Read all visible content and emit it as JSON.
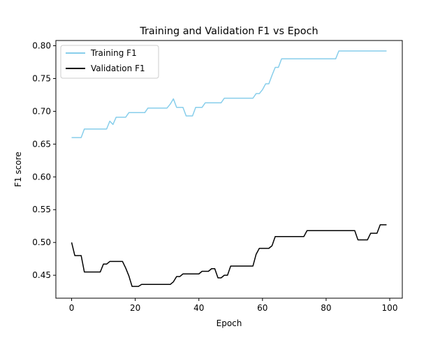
{
  "chart_data": {
    "type": "line",
    "title": "Training and Validation F1 vs Epoch",
    "xlabel": "Epoch",
    "ylabel": "F1 score",
    "xlim": [
      -4.95,
      103.95
    ],
    "ylim": [
      0.415,
      0.808
    ],
    "xticks": [
      0,
      20,
      40,
      60,
      80,
      100
    ],
    "yticks": [
      0.45,
      0.5,
      0.55,
      0.6,
      0.65,
      0.7,
      0.75,
      0.8
    ],
    "xtick_labels": [
      "0",
      "20",
      "40",
      "60",
      "80",
      "100"
    ],
    "ytick_labels": [
      "0.45",
      "0.50",
      "0.55",
      "0.60",
      "0.65",
      "0.70",
      "0.75",
      "0.80"
    ],
    "grid": false,
    "legend_position": "top-left",
    "series": [
      {
        "name": "Training F1",
        "color": "#87ceeb",
        "x": [
          0,
          1,
          2,
          3,
          4,
          5,
          6,
          7,
          8,
          9,
          10,
          11,
          12,
          13,
          14,
          15,
          16,
          17,
          18,
          19,
          20,
          21,
          22,
          23,
          24,
          25,
          26,
          27,
          28,
          29,
          30,
          31,
          32,
          33,
          34,
          35,
          36,
          37,
          38,
          39,
          40,
          41,
          42,
          43,
          44,
          45,
          46,
          47,
          48,
          49,
          50,
          51,
          52,
          53,
          54,
          55,
          56,
          57,
          58,
          59,
          60,
          61,
          62,
          63,
          64,
          65,
          66,
          67,
          68,
          69,
          70,
          71,
          72,
          73,
          74,
          75,
          76,
          77,
          78,
          79,
          80,
          81,
          82,
          83,
          84,
          85,
          86,
          87,
          88,
          89,
          90,
          91,
          92,
          93,
          94,
          95,
          96,
          97,
          98,
          99
        ],
        "y": [
          0.66,
          0.66,
          0.66,
          0.66,
          0.673,
          0.673,
          0.673,
          0.673,
          0.673,
          0.673,
          0.673,
          0.673,
          0.685,
          0.68,
          0.691,
          0.691,
          0.691,
          0.691,
          0.698,
          0.698,
          0.698,
          0.698,
          0.698,
          0.698,
          0.705,
          0.705,
          0.705,
          0.705,
          0.705,
          0.705,
          0.705,
          0.711,
          0.719,
          0.706,
          0.706,
          0.706,
          0.693,
          0.693,
          0.693,
          0.706,
          0.706,
          0.706,
          0.713,
          0.713,
          0.713,
          0.713,
          0.713,
          0.713,
          0.72,
          0.72,
          0.72,
          0.72,
          0.72,
          0.72,
          0.72,
          0.72,
          0.72,
          0.72,
          0.727,
          0.727,
          0.733,
          0.742,
          0.742,
          0.755,
          0.767,
          0.767,
          0.78,
          0.78,
          0.78,
          0.78,
          0.78,
          0.78,
          0.78,
          0.78,
          0.78,
          0.78,
          0.78,
          0.78,
          0.78,
          0.78,
          0.78,
          0.78,
          0.78,
          0.78,
          0.792,
          0.792,
          0.792,
          0.792,
          0.792,
          0.792,
          0.792,
          0.792,
          0.792,
          0.792,
          0.792,
          0.792,
          0.792,
          0.792,
          0.792,
          0.792
        ]
      },
      {
        "name": "Validation F1",
        "color": "#000000",
        "x": [
          0,
          1,
          2,
          3,
          4,
          5,
          6,
          7,
          8,
          9,
          10,
          11,
          12,
          13,
          14,
          15,
          16,
          17,
          18,
          19,
          20,
          21,
          22,
          23,
          24,
          25,
          26,
          27,
          28,
          29,
          30,
          31,
          32,
          33,
          34,
          35,
          36,
          37,
          38,
          39,
          40,
          41,
          42,
          43,
          44,
          45,
          46,
          47,
          48,
          49,
          50,
          51,
          52,
          53,
          54,
          55,
          56,
          57,
          58,
          59,
          60,
          61,
          62,
          63,
          64,
          65,
          66,
          67,
          68,
          69,
          70,
          71,
          72,
          73,
          74,
          75,
          76,
          77,
          78,
          79,
          80,
          81,
          82,
          83,
          84,
          85,
          86,
          87,
          88,
          89,
          90,
          91,
          92,
          93,
          94,
          95,
          96,
          97,
          98,
          99
        ],
        "y": [
          0.5,
          0.48,
          0.48,
          0.48,
          0.455,
          0.455,
          0.455,
          0.455,
          0.455,
          0.455,
          0.467,
          0.467,
          0.471,
          0.471,
          0.471,
          0.471,
          0.471,
          0.461,
          0.449,
          0.433,
          0.433,
          0.433,
          0.436,
          0.436,
          0.436,
          0.436,
          0.436,
          0.436,
          0.436,
          0.436,
          0.436,
          0.436,
          0.44,
          0.448,
          0.448,
          0.452,
          0.452,
          0.452,
          0.452,
          0.452,
          0.452,
          0.456,
          0.456,
          0.456,
          0.46,
          0.46,
          0.446,
          0.446,
          0.45,
          0.45,
          0.464,
          0.464,
          0.464,
          0.464,
          0.464,
          0.464,
          0.464,
          0.464,
          0.482,
          0.491,
          0.491,
          0.491,
          0.491,
          0.495,
          0.509,
          0.509,
          0.509,
          0.509,
          0.509,
          0.509,
          0.509,
          0.509,
          0.509,
          0.509,
          0.518,
          0.518,
          0.518,
          0.518,
          0.518,
          0.518,
          0.518,
          0.518,
          0.518,
          0.518,
          0.518,
          0.518,
          0.518,
          0.518,
          0.518,
          0.518,
          0.504,
          0.504,
          0.504,
          0.504,
          0.514,
          0.514,
          0.514,
          0.527,
          0.527,
          0.527
        ]
      }
    ]
  }
}
